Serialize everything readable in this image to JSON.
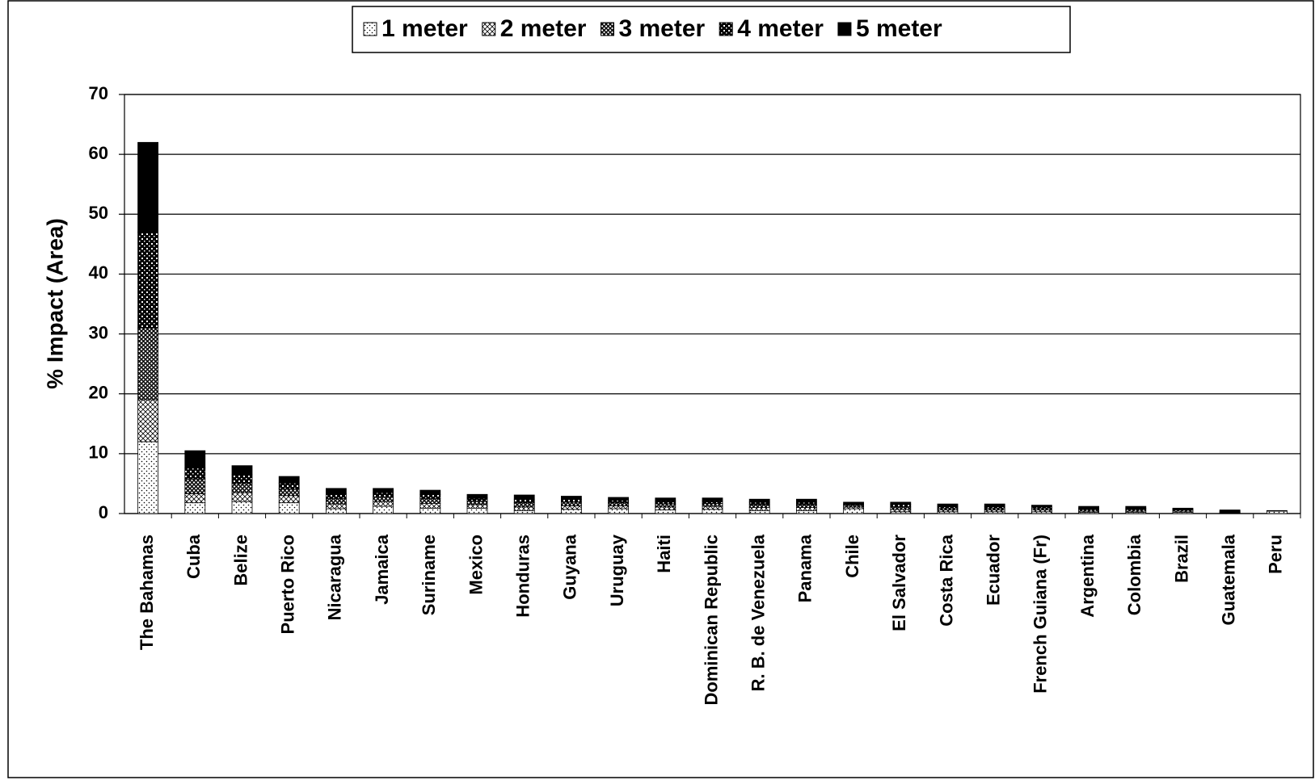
{
  "chart_data": {
    "type": "stacked-bar",
    "y_label": "% Impact (Area)",
    "categories": [
      "The Bahamas",
      "Cuba",
      "Belize",
      "Puerto Rico",
      "Nicaragua",
      "Jamaica",
      "Suriname",
      "Mexico",
      "Honduras",
      "Guyana",
      "Uruguay",
      "Haiti",
      "Dominican Republic",
      "R. B. de Venezuela",
      "Panama",
      "Chile",
      "El Salvador",
      "Costa Rica",
      "Ecuador",
      "French Guiana (Fr)",
      "Argentina",
      "Colombia",
      "Brazil",
      "Guatemala",
      "Peru"
    ],
    "series": [
      {
        "name": "1 meter",
        "color": "#ffffff",
        "values": [
          12,
          1.8,
          2,
          1.8,
          0.8,
          1.2,
          0.9,
          0.9,
          0.5,
          0.7,
          0.8,
          0.6,
          0.7,
          0.5,
          0.5,
          0.8,
          0.3,
          0.3,
          0.3,
          0.3,
          0.2,
          0.2,
          0.2,
          0.1,
          0.4
        ]
      },
      {
        "name": "2 meter",
        "color": "#ffffff",
        "values": [
          7,
          1.5,
          1.5,
          1.2,
          0.8,
          0.8,
          0.8,
          0.6,
          0.6,
          0.6,
          0.5,
          0.5,
          0.5,
          0.5,
          0.5,
          0.3,
          0.4,
          0.3,
          0.3,
          0.3,
          0.2,
          0.2,
          0.2,
          0.1,
          0.1
        ]
      },
      {
        "name": "3 meter",
        "color": "#ffffff",
        "values": [
          12,
          2.5,
          1.5,
          1.1,
          0.9,
          0.8,
          0.8,
          0.6,
          0.7,
          0.6,
          0.5,
          0.5,
          0.5,
          0.5,
          0.5,
          0.3,
          0.4,
          0.3,
          0.3,
          0.3,
          0.3,
          0.3,
          0.2,
          0.1,
          0
        ]
      },
      {
        "name": "4 meter",
        "color": "#ffffff",
        "values": [
          16,
          1.8,
          1.5,
          1.0,
          0.8,
          0.7,
          0.7,
          0.5,
          0.6,
          0.5,
          0.4,
          0.5,
          0.4,
          0.4,
          0.4,
          0.2,
          0.4,
          0.3,
          0.3,
          0.2,
          0.2,
          0.2,
          0.1,
          0.1,
          0
        ]
      },
      {
        "name": "5 meter",
        "color": "#000000",
        "values": [
          15,
          2.9,
          1.5,
          1.1,
          0.9,
          0.7,
          0.7,
          0.6,
          0.7,
          0.5,
          0.5,
          0.5,
          0.5,
          0.5,
          0.5,
          0.3,
          0.4,
          0.4,
          0.4,
          0.3,
          0.3,
          0.3,
          0.2,
          0.2,
          0
        ]
      }
    ],
    "ylim": [
      0,
      70
    ],
    "yticks": [
      0,
      10,
      20,
      30,
      40,
      50,
      60,
      70
    ],
    "grid": true,
    "legend": "top"
  }
}
